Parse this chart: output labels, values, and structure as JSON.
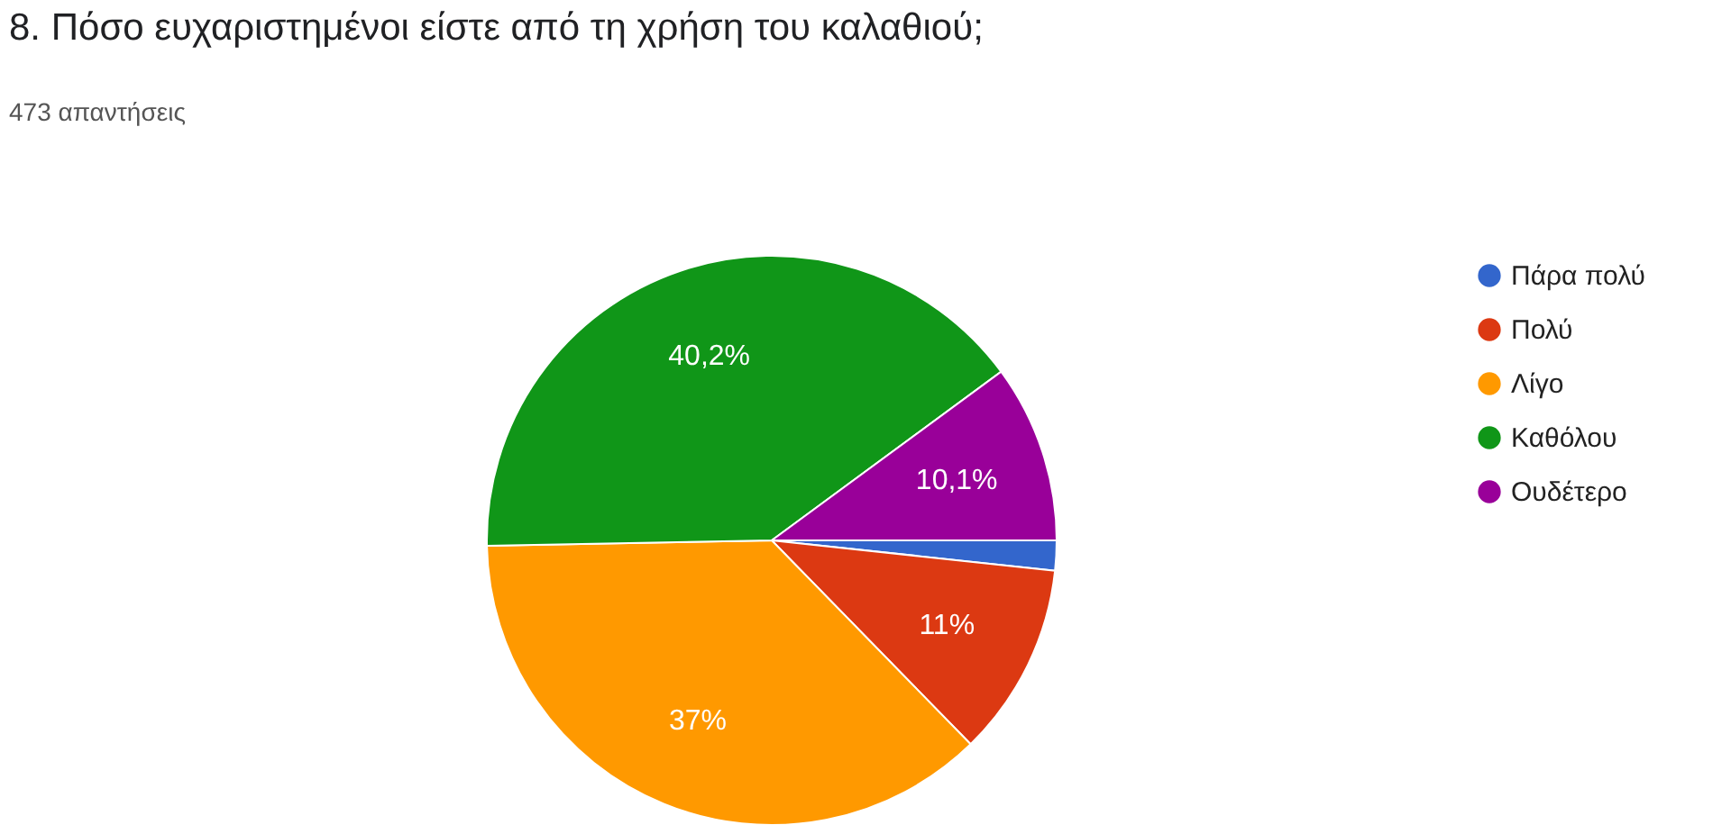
{
  "chart_data": {
    "type": "pie",
    "title": "8. Πόσο ευχαριστημένοι είστε από τη χρήση του καλαθιού;",
    "subtitle": "473 απαντήσεις",
    "categories": [
      "Πάρα πολύ",
      "Πολύ",
      "Λίγο",
      "Καθόλου",
      "Ουδέτερο"
    ],
    "values": [
      1.7,
      11,
      37,
      40.2,
      10.1
    ],
    "colors": [
      "#3366cc",
      "#dc3912",
      "#ff9900",
      "#109618",
      "#990099"
    ],
    "value_labels": [
      null,
      "11%",
      "37%",
      "40,2%",
      "10,1%"
    ],
    "legend": "top right"
  }
}
